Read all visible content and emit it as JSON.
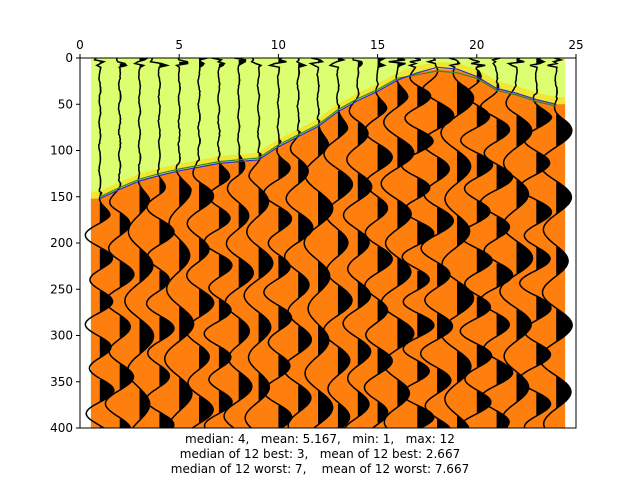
{
  "chart_data": {
    "type": "heatmap",
    "description_of_layers": [
      "background velocity field (orange below, yellow-green above)",
      "wiggle traces with filled positive lobes",
      "blue and green pick lines"
    ],
    "xlim": [
      0,
      25
    ],
    "ylim": [
      400,
      0
    ],
    "x_ticks": [
      "0",
      "5",
      "10",
      "15",
      "20",
      "25"
    ],
    "y_ticks": [
      "0",
      "50",
      "100",
      "150",
      "200",
      "250",
      "300",
      "350",
      "400"
    ],
    "grid": false,
    "colors": {
      "lower_field": "#ff7f0e",
      "upper_field": "#dbff70",
      "boundary_glow": "#ffd400",
      "wiggle": "#000000",
      "pick_blue": "#2b2bd6",
      "pick_green": "#2a8a2a"
    },
    "trace_x": [
      1.0,
      2.0,
      3.0,
      4.0,
      5.0,
      6.0,
      7.0,
      8.0,
      9.0,
      10.0,
      11.0,
      12.0,
      13.0,
      14.0,
      15.0,
      16.0,
      17.0,
      18.0,
      19.0,
      20.0,
      21.0,
      22.0,
      23.0,
      24.0
    ],
    "boundary_depth": [
      152,
      142,
      133,
      127,
      122,
      118,
      114,
      112,
      110,
      96,
      85,
      74,
      58,
      46,
      36,
      24,
      16,
      12,
      13,
      20,
      33,
      38,
      45,
      50
    ],
    "pick_blue_depth": [
      152,
      142,
      133,
      127,
      122,
      118,
      114,
      112,
      110,
      96,
      85,
      74,
      58,
      46,
      36,
      24,
      16,
      10,
      12,
      20,
      33,
      38,
      45,
      50
    ],
    "pick_green_depth": [
      150,
      140,
      131,
      125,
      120,
      116,
      112,
      110,
      108,
      94,
      83,
      72,
      56,
      44,
      34,
      22,
      18,
      14,
      16,
      22,
      35,
      40,
      47,
      52
    ]
  },
  "caption": {
    "line1": "median: 4,   mean: 5.167,   min: 1,   max: 12",
    "line2": "median of 12 best: 3,   mean of 12 best: 2.667",
    "line3": "median of 12 worst: 7,    mean of 12 worst: 7.667"
  }
}
